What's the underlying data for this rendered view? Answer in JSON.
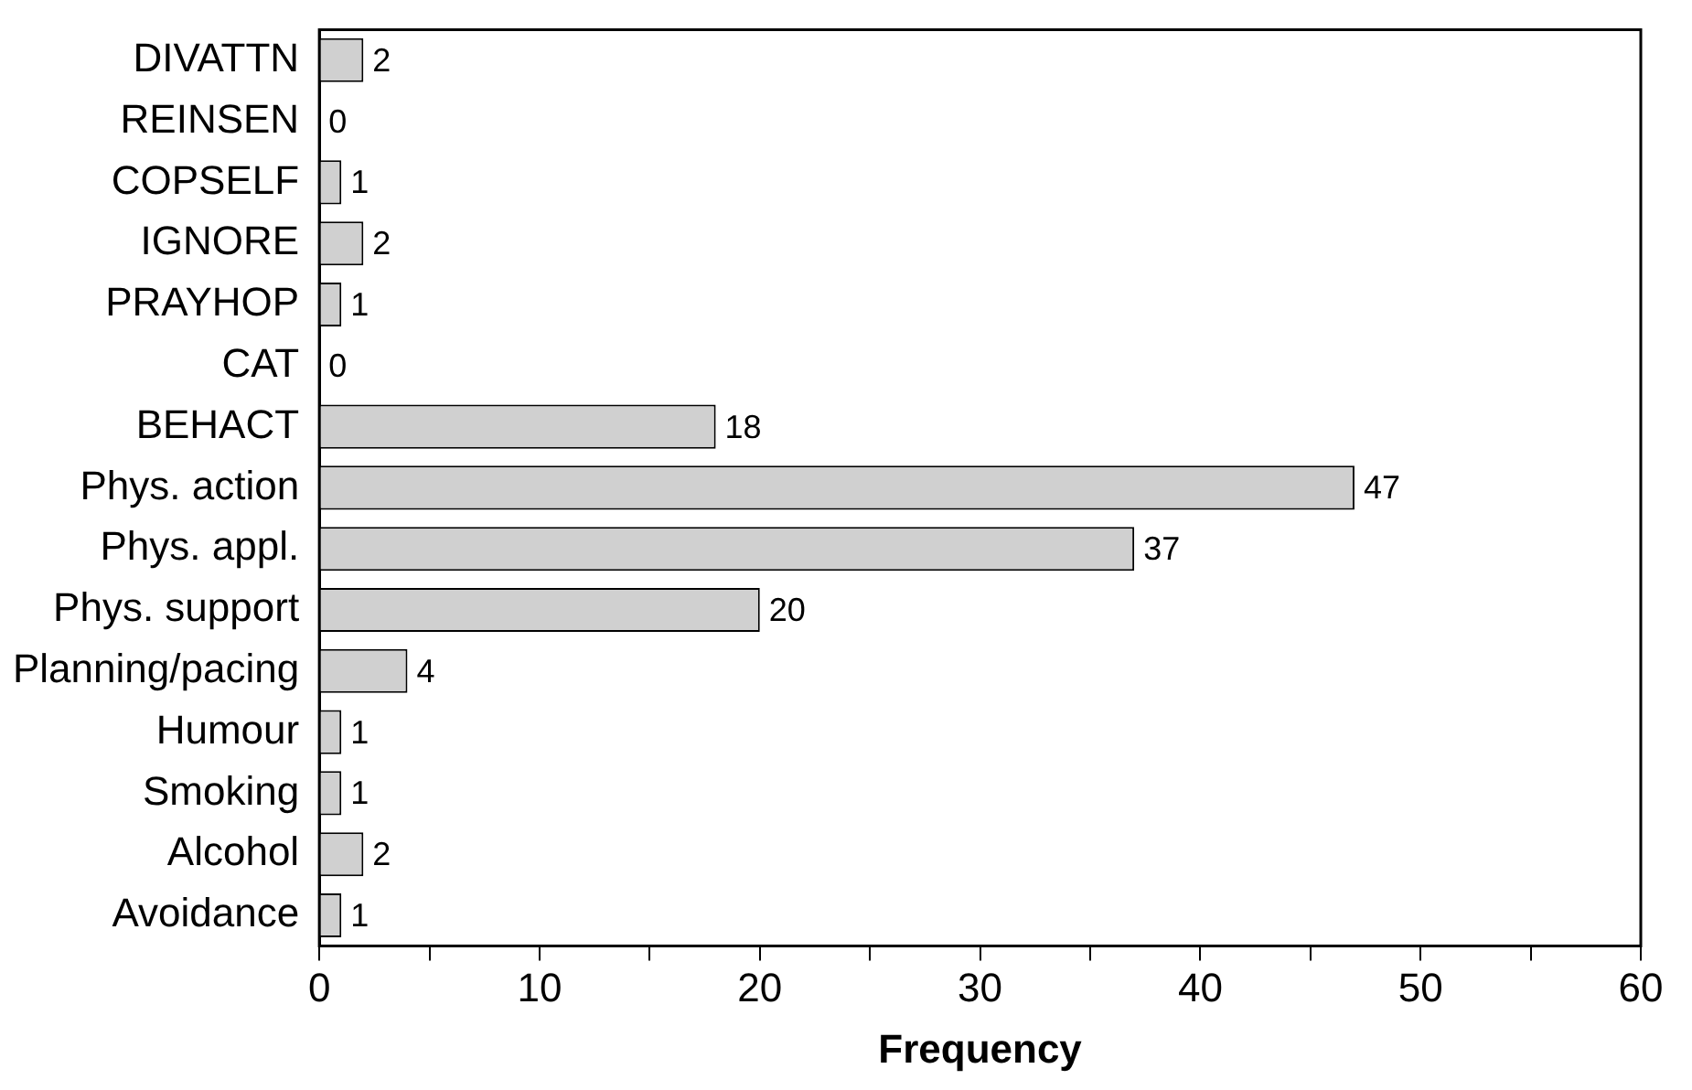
{
  "chart_data": {
    "type": "bar",
    "orientation": "horizontal",
    "xlabel": "Frequency",
    "categories": [
      "DIVATTN",
      "REINSEN",
      "COPSELF",
      "IGNORE",
      "PRAYHOP",
      "CAT",
      "BEHACT",
      "Phys. action",
      "Phys. appl.",
      "Phys. support",
      "Planning/pacing",
      "Humour",
      "Smoking",
      "Alcohol",
      "Avoidance"
    ],
    "values": [
      2,
      0,
      1,
      2,
      1,
      0,
      18,
      47,
      37,
      20,
      4,
      1,
      1,
      2,
      1
    ],
    "color": "#d0d0d0",
    "xlim": [
      0,
      60
    ],
    "xticks": [
      0,
      {
        "value": 5,
        "label": null
      },
      10,
      {
        "value": 15,
        "label": null
      },
      20,
      {
        "value": 25,
        "label": null
      },
      30,
      {
        "value": 35,
        "label": null
      },
      40,
      {
        "value": 45,
        "label": null
      },
      50,
      {
        "value": 55,
        "label": null
      },
      60
    ],
    "data_labels": true,
    "grid": false,
    "legend": false
  }
}
